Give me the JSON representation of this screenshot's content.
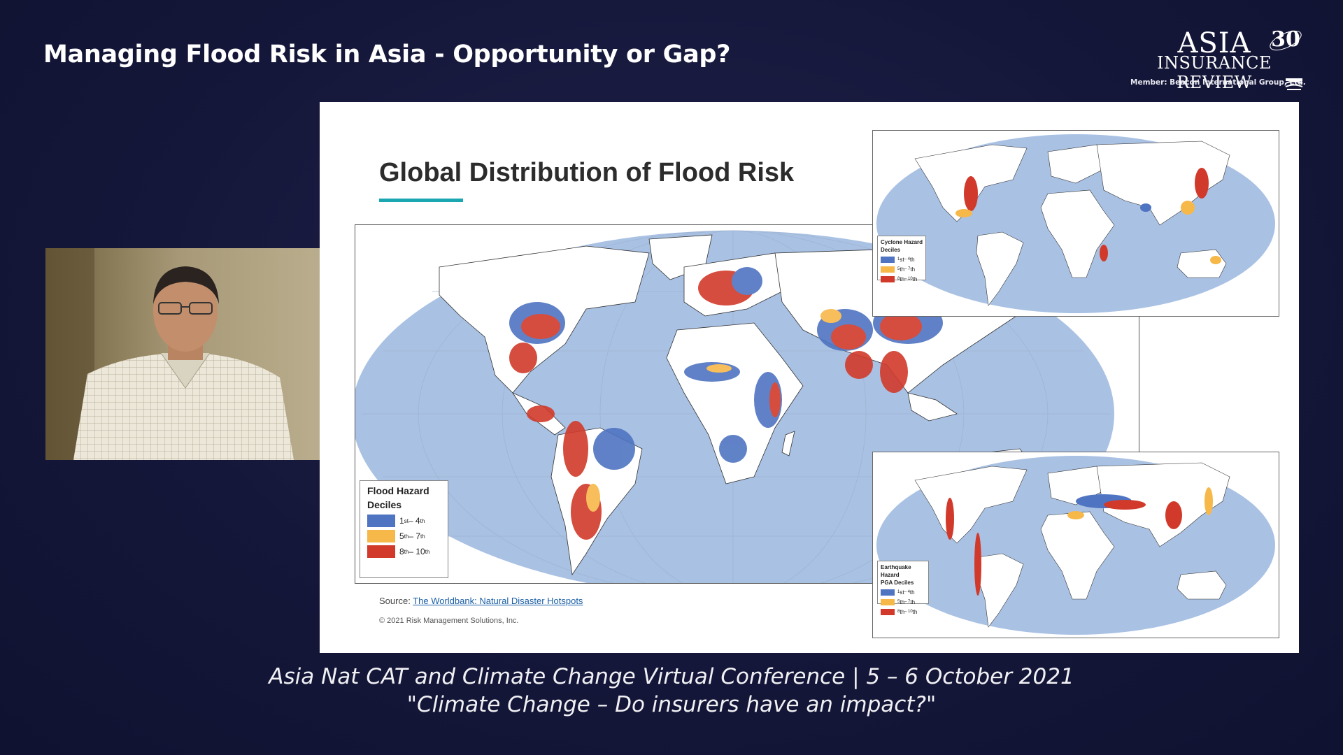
{
  "header": {
    "session_title": "Managing Flood Risk in Asia - Opportunity or Gap?"
  },
  "logo": {
    "line1": "ASIA",
    "line2": "INSURANCE REVIEW",
    "anniversary": "30",
    "member": "Member: Beacon International Group, Ltd."
  },
  "speaker_video": {
    "icon": "person-video-feed"
  },
  "slide": {
    "title": "Global Distribution of Flood Risk",
    "accent_color": "#1ba7b2",
    "flood_legend": {
      "title_line1": "Flood Hazard",
      "title_line2": "Deciles",
      "items": [
        {
          "base": "1",
          "sup1": "st",
          "mid": " – 4",
          "sup2": "th",
          "color": "#4f74c1"
        },
        {
          "base": "5",
          "sup1": "th",
          "mid": " – 7",
          "sup2": "th",
          "color": "#f7b84a"
        },
        {
          "base": "8",
          "sup1": "th",
          "mid": " – 10",
          "sup2": "th",
          "color": "#d13a2b"
        }
      ]
    },
    "cyclone_legend": {
      "title_line1": "Cyclone Hazard",
      "title_line2": "Deciles",
      "items": [
        {
          "base": "1",
          "sup1": "st",
          "mid": " – 4",
          "sup2": "th",
          "color": "#4f74c1"
        },
        {
          "base": "5",
          "sup1": "th",
          "mid": " – 7",
          "sup2": "th",
          "color": "#f7b84a"
        },
        {
          "base": "8",
          "sup1": "th",
          "mid": " – 10",
          "sup2": "th",
          "color": "#d13a2b"
        }
      ]
    },
    "quake_legend": {
      "title_line1": "Earthquake Hazard",
      "title_line2": "PGA Deciles",
      "items": [
        {
          "base": "1",
          "sup1": "st",
          "mid": " – 4",
          "sup2": "th",
          "color": "#4f74c1"
        },
        {
          "base": "5",
          "sup1": "th",
          "mid": " – 7",
          "sup2": "th",
          "color": "#f7b84a"
        },
        {
          "base": "8",
          "sup1": "th",
          "mid": " – 10",
          "sup2": "th",
          "color": "#d13a2b"
        }
      ]
    },
    "source_prefix": "Source: ",
    "source_link": "The Worldbank: Natural Disaster Hotspots",
    "copyright": "© 2021 Risk Management Solutions, Inc."
  },
  "footer": {
    "line1": "Asia Nat CAT and Climate Change Virtual Conference  |  5 – 6 October 2021",
    "line2": "\"Climate Change – Do insurers have an impact?\""
  },
  "colors": {
    "ocean": "#a9c1e3",
    "land": "#ffffff",
    "low": "#4f74c1",
    "mid": "#f7b84a",
    "high": "#d13a2b",
    "background": "#15173a"
  }
}
